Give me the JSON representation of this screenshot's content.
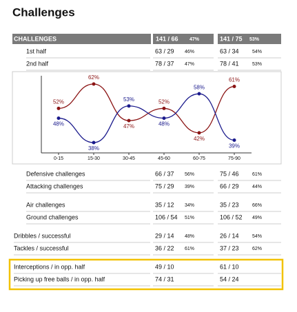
{
  "title": "Challenges",
  "table": {
    "header": [
      "CHALLENGES",
      "141 / 66",
      "47%",
      "141 / 75",
      "53%"
    ],
    "rows": [
      [
        "1st half",
        "63 / 29",
        "46%",
        "63 / 34",
        "54%"
      ],
      [
        "2nd half",
        "78 / 37",
        "47%",
        "78 / 41",
        "53%"
      ],
      [
        "Defensive challenges",
        "66 / 37",
        "56%",
        "75 / 46",
        "61%"
      ],
      [
        "Attacking challenges",
        "75 / 29",
        "39%",
        "66 / 29",
        "44%"
      ],
      [
        "Air challenges",
        "35 / 12",
        "34%",
        "35 / 23",
        "66%"
      ],
      [
        "Ground challenges",
        "106 / 54",
        "51%",
        "106 / 52",
        "49%"
      ],
      [
        "Dribbles / successful",
        "29 / 14",
        "48%",
        "26 / 14",
        "54%"
      ],
      [
        "Tackles / successful",
        "36 / 22",
        "61%",
        "37 / 23",
        "62%"
      ],
      [
        "Interceptions / in opp. half",
        "49 / 10",
        "61 / 10"
      ],
      [
        "Picking up free balls / in opp. half",
        "74 / 31",
        "54 / 24"
      ]
    ]
  },
  "chart_data": {
    "type": "line",
    "categories": [
      "0-15",
      "15-30",
      "30-45",
      "45-60",
      "60-75",
      "75-90"
    ],
    "series": [
      {
        "color": "#8b1414",
        "values": [
          52,
          62,
          47,
          52,
          42,
          61
        ],
        "value_labels": [
          "52%",
          "62%",
          "47%",
          "52%",
          "42%",
          "61%"
        ]
      },
      {
        "color": "#1a1a8c",
        "values": [
          48,
          38,
          53,
          48,
          58,
          39
        ],
        "value_labels": [
          "48%",
          "38%",
          "53%",
          "48%",
          "58%",
          "39%"
        ]
      }
    ]
  }
}
